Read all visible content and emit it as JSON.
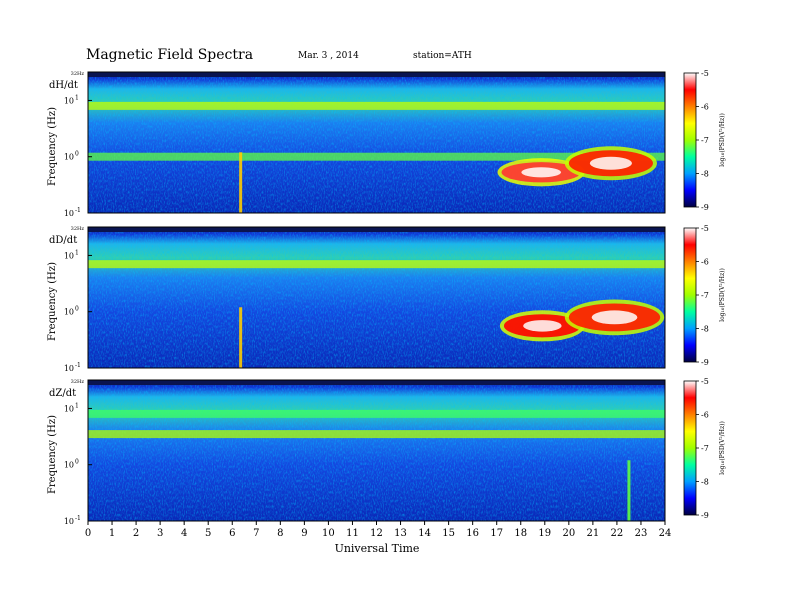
{
  "header": {
    "title": "Magnetic  Field  Spectra",
    "date": "Mar. 3  , 2014",
    "station": "station=ATH"
  },
  "chart_data": {
    "type": "heatmap",
    "xlabel": "Universal Time",
    "xlim": [
      0,
      24
    ],
    "x_ticks": [
      "0",
      "1",
      "2",
      "3",
      "4",
      "5",
      "6",
      "7",
      "8",
      "9",
      "10",
      "11",
      "12",
      "13",
      "14",
      "15",
      "16",
      "17",
      "18",
      "19",
      "20",
      "21",
      "22",
      "23",
      "24"
    ],
    "colorbar": {
      "label": "log10(PSD(V^2/Hz))",
      "label_display": "log₁₀(PSD(V²/Hz))",
      "range": [
        -9,
        -5
      ],
      "ticks": [
        "-5",
        "-6",
        "-7",
        "-8",
        "-9"
      ],
      "colors": [
        "#000040",
        "#0000ff",
        "#00a0ff",
        "#00ffa0",
        "#a0ff00",
        "#ffff00",
        "#ff8000",
        "#ff0000",
        "#ffffff"
      ]
    },
    "panels": [
      {
        "name": "dH/dt",
        "ylabel": "Frequency  (Hz)",
        "ytop": "32Hz",
        "yticks": [
          {
            "exp": "1",
            "value": 10
          },
          {
            "exp": "0",
            "value": 1
          },
          {
            "exp": "-1",
            "value": 0.1
          }
        ],
        "features": [
          {
            "kind": "band",
            "f": 8.0,
            "level": -6.8
          },
          {
            "kind": "band",
            "f": 1.0,
            "level": -7.2
          },
          {
            "kind": "spike",
            "t": 6.35,
            "level": -6.3
          },
          {
            "kind": "burst",
            "t0": 17.2,
            "t1": 20.5,
            "f0": 0.35,
            "f1": 0.8,
            "level": -5.4
          },
          {
            "kind": "burst",
            "t0": 20.0,
            "t1": 23.5,
            "f0": 0.45,
            "f1": 1.3,
            "level": -5.6
          }
        ]
      },
      {
        "name": "dD/dt",
        "ylabel": "Frequency  (Hz)",
        "ytop": "32Hz",
        "yticks": [
          {
            "exp": "1",
            "value": 10
          },
          {
            "exp": "0",
            "value": 1
          },
          {
            "exp": "-1",
            "value": 0.1
          }
        ],
        "features": [
          {
            "kind": "band",
            "f": 7.0,
            "level": -6.8
          },
          {
            "kind": "spike",
            "t": 6.35,
            "level": -6.3
          },
          {
            "kind": "burst",
            "t0": 17.3,
            "t1": 20.5,
            "f0": 0.35,
            "f1": 0.9,
            "level": -5.5
          },
          {
            "kind": "burst",
            "t0": 20.0,
            "t1": 23.8,
            "f0": 0.45,
            "f1": 1.4,
            "level": -5.6
          }
        ]
      },
      {
        "name": "dZ/dt",
        "ylabel": "Frequency  (Hz)",
        "ytop": "32Hz",
        "yticks": [
          {
            "exp": "1",
            "value": 10
          },
          {
            "exp": "0",
            "value": 1
          },
          {
            "exp": "-1",
            "value": 0.1
          }
        ],
        "features": [
          {
            "kind": "band",
            "f": 3.5,
            "level": -6.9
          },
          {
            "kind": "band",
            "f": 8.0,
            "level": -7.3
          },
          {
            "kind": "spike",
            "t": 22.5,
            "level": -7.2
          }
        ]
      }
    ]
  }
}
